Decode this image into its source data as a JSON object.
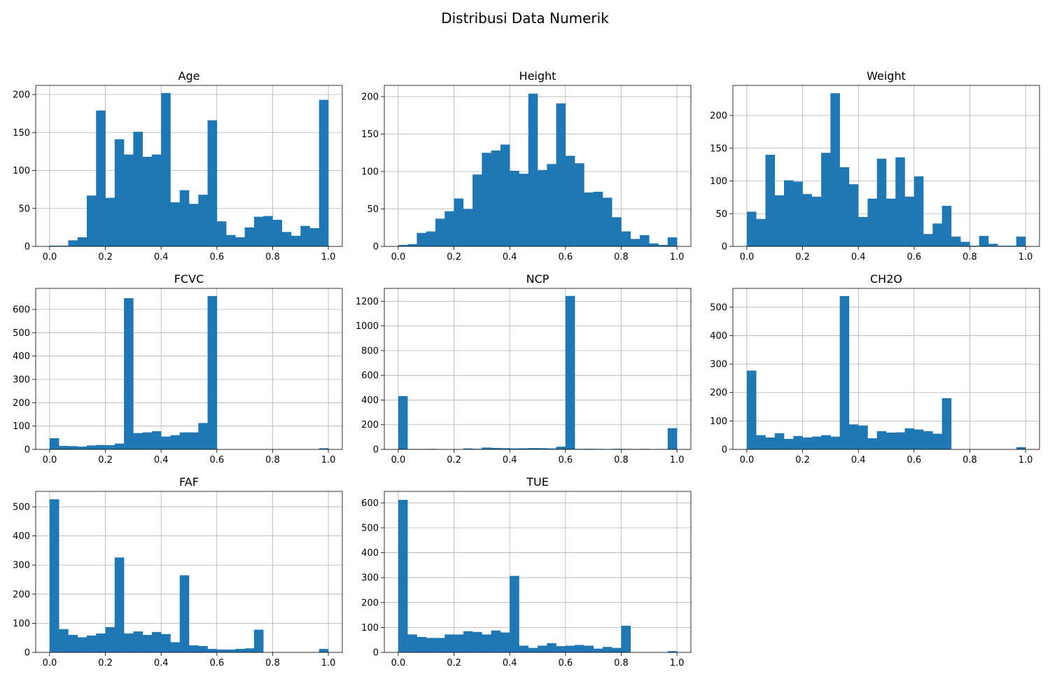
{
  "figure": {
    "suptitle": "Distribusi Data Numerik",
    "bar_color": "#1f77b4",
    "grid_color": "#b0b0b0"
  },
  "chart_data": [
    {
      "type": "bar",
      "title": "Age",
      "xlim": [
        -0.05,
        1.05
      ],
      "ylim": [
        0,
        212
      ],
      "xticks": [
        0.0,
        0.2,
        0.4,
        0.6,
        0.8,
        1.0
      ],
      "xtick_labels": [
        "0.0",
        "0.2",
        "0.4",
        "0.6",
        "0.8",
        "1.0"
      ],
      "yticks": [
        0,
        50,
        100,
        150,
        200
      ],
      "yticks_labels": [
        "0",
        "50",
        "100",
        "150",
        "200"
      ],
      "grid": true,
      "bins": 30,
      "bin_range": [
        0,
        1
      ],
      "values": [
        1,
        1,
        8,
        12,
        67,
        179,
        64,
        141,
        121,
        151,
        118,
        121,
        202,
        58,
        74,
        56,
        68,
        166,
        33,
        15,
        12,
        25,
        39,
        40,
        35,
        19,
        14,
        27,
        24,
        193
      ]
    },
    {
      "type": "bar",
      "title": "Height",
      "xlim": [
        -0.05,
        1.05
      ],
      "ylim": [
        0,
        215
      ],
      "xticks": [
        0.0,
        0.2,
        0.4,
        0.6,
        0.8,
        1.0
      ],
      "xtick_labels": [
        "0.0",
        "0.2",
        "0.4",
        "0.6",
        "0.8",
        "1.0"
      ],
      "yticks": [
        0,
        50,
        100,
        150,
        200
      ],
      "yticks_labels": [
        "0",
        "50",
        "100",
        "150",
        "200"
      ],
      "grid": true,
      "bins": 30,
      "bin_range": [
        0,
        1
      ],
      "values": [
        2,
        3,
        18,
        20,
        37,
        47,
        64,
        50,
        96,
        125,
        128,
        136,
        101,
        97,
        204,
        102,
        110,
        191,
        121,
        111,
        72,
        73,
        65,
        39,
        20,
        10,
        15,
        4,
        2,
        12
      ]
    },
    {
      "type": "bar",
      "title": "Weight",
      "xlim": [
        -0.05,
        1.05
      ],
      "ylim": [
        0,
        246
      ],
      "xticks": [
        0.0,
        0.2,
        0.4,
        0.6,
        0.8,
        1.0
      ],
      "xtick_labels": [
        "0.0",
        "0.2",
        "0.4",
        "0.6",
        "0.8",
        "1.0"
      ],
      "yticks": [
        0,
        50,
        100,
        150,
        200
      ],
      "yticks_labels": [
        "0",
        "50",
        "100",
        "150",
        "200"
      ],
      "grid": true,
      "bins": 30,
      "bin_range": [
        0,
        1
      ],
      "values": [
        53,
        42,
        140,
        78,
        101,
        99,
        80,
        76,
        143,
        234,
        121,
        95,
        45,
        73,
        134,
        73,
        136,
        76,
        107,
        19,
        35,
        62,
        15,
        7,
        1,
        16,
        4,
        1,
        1,
        15
      ]
    },
    {
      "type": "bar",
      "title": "FCVC",
      "xlim": [
        -0.05,
        1.05
      ],
      "ylim": [
        0,
        690
      ],
      "xticks": [
        0.0,
        0.2,
        0.4,
        0.6,
        0.8,
        1.0
      ],
      "xtick_labels": [
        "0.0",
        "0.2",
        "0.4",
        "0.6",
        "0.8",
        "1.0"
      ],
      "yticks": [
        0,
        100,
        200,
        300,
        400,
        500,
        600
      ],
      "yticks_labels": [
        "0",
        "100",
        "200",
        "300",
        "400",
        "500",
        "600"
      ],
      "grid": true,
      "bins": 30,
      "bin_range": [
        0,
        1
      ],
      "values": [
        48,
        15,
        14,
        12,
        17,
        19,
        18,
        25,
        648,
        70,
        73,
        78,
        55,
        61,
        73,
        73,
        113,
        657,
        0,
        0,
        0,
        0,
        0,
        0,
        0,
        0,
        0,
        0,
        0,
        5
      ]
    },
    {
      "type": "bar",
      "title": "NCP",
      "xlim": [
        -0.05,
        1.05
      ],
      "ylim": [
        0,
        1304
      ],
      "xticks": [
        0.0,
        0.2,
        0.4,
        0.6,
        0.8,
        1.0
      ],
      "xtick_labels": [
        "0.0",
        "0.2",
        "0.4",
        "0.6",
        "0.8",
        "1.0"
      ],
      "yticks": [
        0,
        200,
        400,
        600,
        800,
        1000,
        1200
      ],
      "yticks_labels": [
        "0",
        "200",
        "400",
        "600",
        "800",
        "1000",
        "1200"
      ],
      "grid": true,
      "bins": 30,
      "bin_range": [
        0,
        1
      ],
      "values": [
        432,
        3,
        3,
        4,
        2,
        0,
        0,
        8,
        5,
        15,
        12,
        10,
        8,
        9,
        11,
        10,
        8,
        22,
        1243,
        4,
        5,
        4,
        3,
        5,
        4,
        3,
        4,
        2,
        3,
        172
      ]
    },
    {
      "type": "bar",
      "title": "CH2O",
      "xlim": [
        -0.05,
        1.05
      ],
      "ylim": [
        0,
        566
      ],
      "xticks": [
        0.0,
        0.2,
        0.4,
        0.6,
        0.8,
        1.0
      ],
      "xtick_labels": [
        "0.0",
        "0.2",
        "0.4",
        "0.6",
        "0.8",
        "1.0"
      ],
      "yticks": [
        0,
        100,
        200,
        300,
        400,
        500
      ],
      "yticks_labels": [
        "0",
        "100",
        "200",
        "300",
        "400",
        "500"
      ],
      "grid": true,
      "bins": 30,
      "bin_range": [
        0,
        1
      ],
      "values": [
        277,
        50,
        42,
        57,
        37,
        47,
        42,
        45,
        50,
        45,
        539,
        88,
        84,
        39,
        64,
        59,
        60,
        74,
        70,
        64,
        55,
        180,
        0,
        0,
        0,
        0,
        0,
        0,
        0,
        8
      ]
    },
    {
      "type": "bar",
      "title": "FAF",
      "xlim": [
        -0.05,
        1.05
      ],
      "ylim": [
        0,
        553
      ],
      "xticks": [
        0.0,
        0.2,
        0.4,
        0.6,
        0.8,
        1.0
      ],
      "xtick_labels": [
        "0.0",
        "0.2",
        "0.4",
        "0.6",
        "0.8",
        "1.0"
      ],
      "yticks": [
        0,
        100,
        200,
        300,
        400,
        500
      ],
      "yticks_labels": [
        "0",
        "100",
        "200",
        "300",
        "400",
        "500"
      ],
      "grid": true,
      "bins": 30,
      "bin_range": [
        0,
        1
      ],
      "values": [
        526,
        80,
        60,
        52,
        58,
        65,
        87,
        326,
        65,
        72,
        60,
        70,
        63,
        35,
        265,
        24,
        22,
        12,
        10,
        10,
        12,
        14,
        78,
        0,
        0,
        0,
        0,
        0,
        0,
        12
      ]
    },
    {
      "type": "bar",
      "title": "TUE",
      "xlim": [
        -0.05,
        1.05
      ],
      "ylim": [
        0,
        646
      ],
      "xticks": [
        0.0,
        0.2,
        0.4,
        0.6,
        0.8,
        1.0
      ],
      "xtick_labels": [
        "0.0",
        "0.2",
        "0.4",
        "0.6",
        "0.8",
        "1.0"
      ],
      "yticks": [
        0,
        100,
        200,
        300,
        400,
        500,
        600
      ],
      "yticks_labels": [
        "0",
        "100",
        "200",
        "300",
        "400",
        "500",
        "600"
      ],
      "grid": true,
      "bins": 30,
      "bin_range": [
        0,
        1
      ],
      "values": [
        612,
        72,
        62,
        58,
        58,
        72,
        72,
        85,
        82,
        72,
        88,
        80,
        307,
        27,
        18,
        27,
        37,
        25,
        27,
        30,
        27,
        15,
        22,
        18,
        107,
        0,
        0,
        0,
        0,
        5
      ]
    }
  ]
}
